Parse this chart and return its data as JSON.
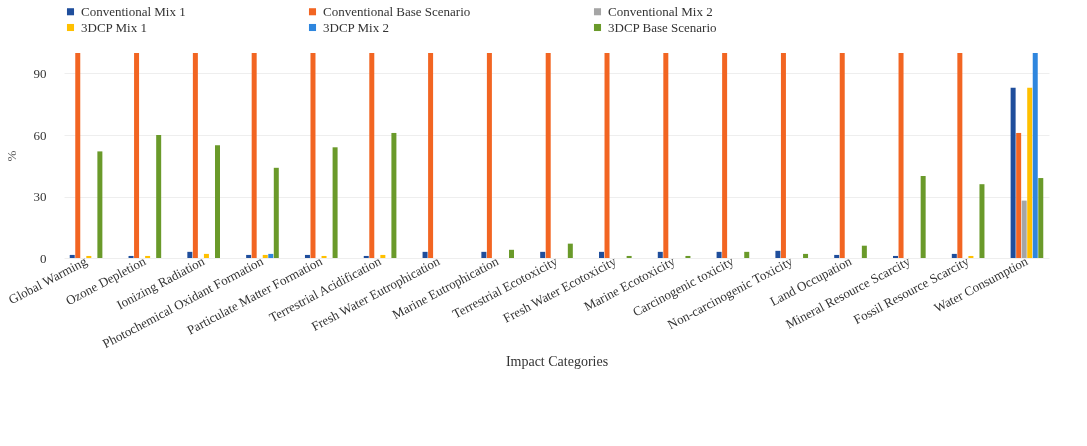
{
  "chart_data": {
    "type": "bar",
    "xlabel": "Impact Categories",
    "ylabel": "%",
    "categories": [
      "Global Warming",
      "Ozone Depletion",
      "Ionizing Radiation",
      "Photochemical Oxidant Formation",
      "Particulate Matter Formation",
      "Terrestrial Acidification",
      "Fresh Water Eutrophication",
      "Marine Eutrophication",
      "Terrestrial Ecotoxicity",
      "Fresh Water Ecotoxicity",
      "Marine Ecotoxicity",
      "Carcinogenic toxicity",
      "Non-carcinogenic Toxicity",
      "Land Occupation",
      "Mineral Resource Scarcity",
      "Fossil Resource Scarcity",
      "Water Consumption"
    ],
    "series": [
      {
        "name": "Conventional Mix 1",
        "color": "#1f4e9c",
        "values": [
          1.5,
          1,
          3,
          1.5,
          1.5,
          1,
          3,
          3,
          3,
          3,
          3,
          3,
          3.5,
          1.5,
          1,
          2,
          83
        ]
      },
      {
        "name": "Conventional Base Scenario",
        "color": "#f26522",
        "values": [
          100,
          100,
          100,
          100,
          100,
          100,
          100,
          100,
          100,
          100,
          100,
          100,
          100,
          100,
          100,
          100,
          61
        ]
      },
      {
        "name": "Conventional Mix 2",
        "color": "#a5a5a5",
        "values": [
          0,
          0,
          0,
          0,
          0,
          0,
          0,
          0,
          0,
          0,
          0,
          0,
          0,
          0,
          0,
          0,
          28
        ]
      },
      {
        "name": "3DCP Mix 1",
        "color": "#ffc000",
        "values": [
          1,
          1,
          2,
          1.5,
          1,
          1.5,
          0,
          0,
          0,
          0,
          0,
          0,
          0,
          0,
          0,
          1,
          83
        ]
      },
      {
        "name": "3DCP Mix 2",
        "color": "#2e86de",
        "values": [
          0,
          0,
          0,
          2,
          0,
          0,
          0,
          0,
          0,
          0,
          0,
          0,
          0,
          0,
          0,
          0,
          100
        ]
      },
      {
        "name": "3DCP Base Scenario",
        "color": "#6a9a2a",
        "values": [
          52,
          60,
          55,
          44,
          54,
          61,
          0,
          4,
          7,
          1,
          1,
          3,
          2,
          6,
          40,
          36,
          39
        ]
      }
    ],
    "ylim": [
      0,
      100
    ],
    "yticks": [
      0,
      30,
      60,
      90
    ],
    "grid": "y",
    "legend": "top"
  }
}
